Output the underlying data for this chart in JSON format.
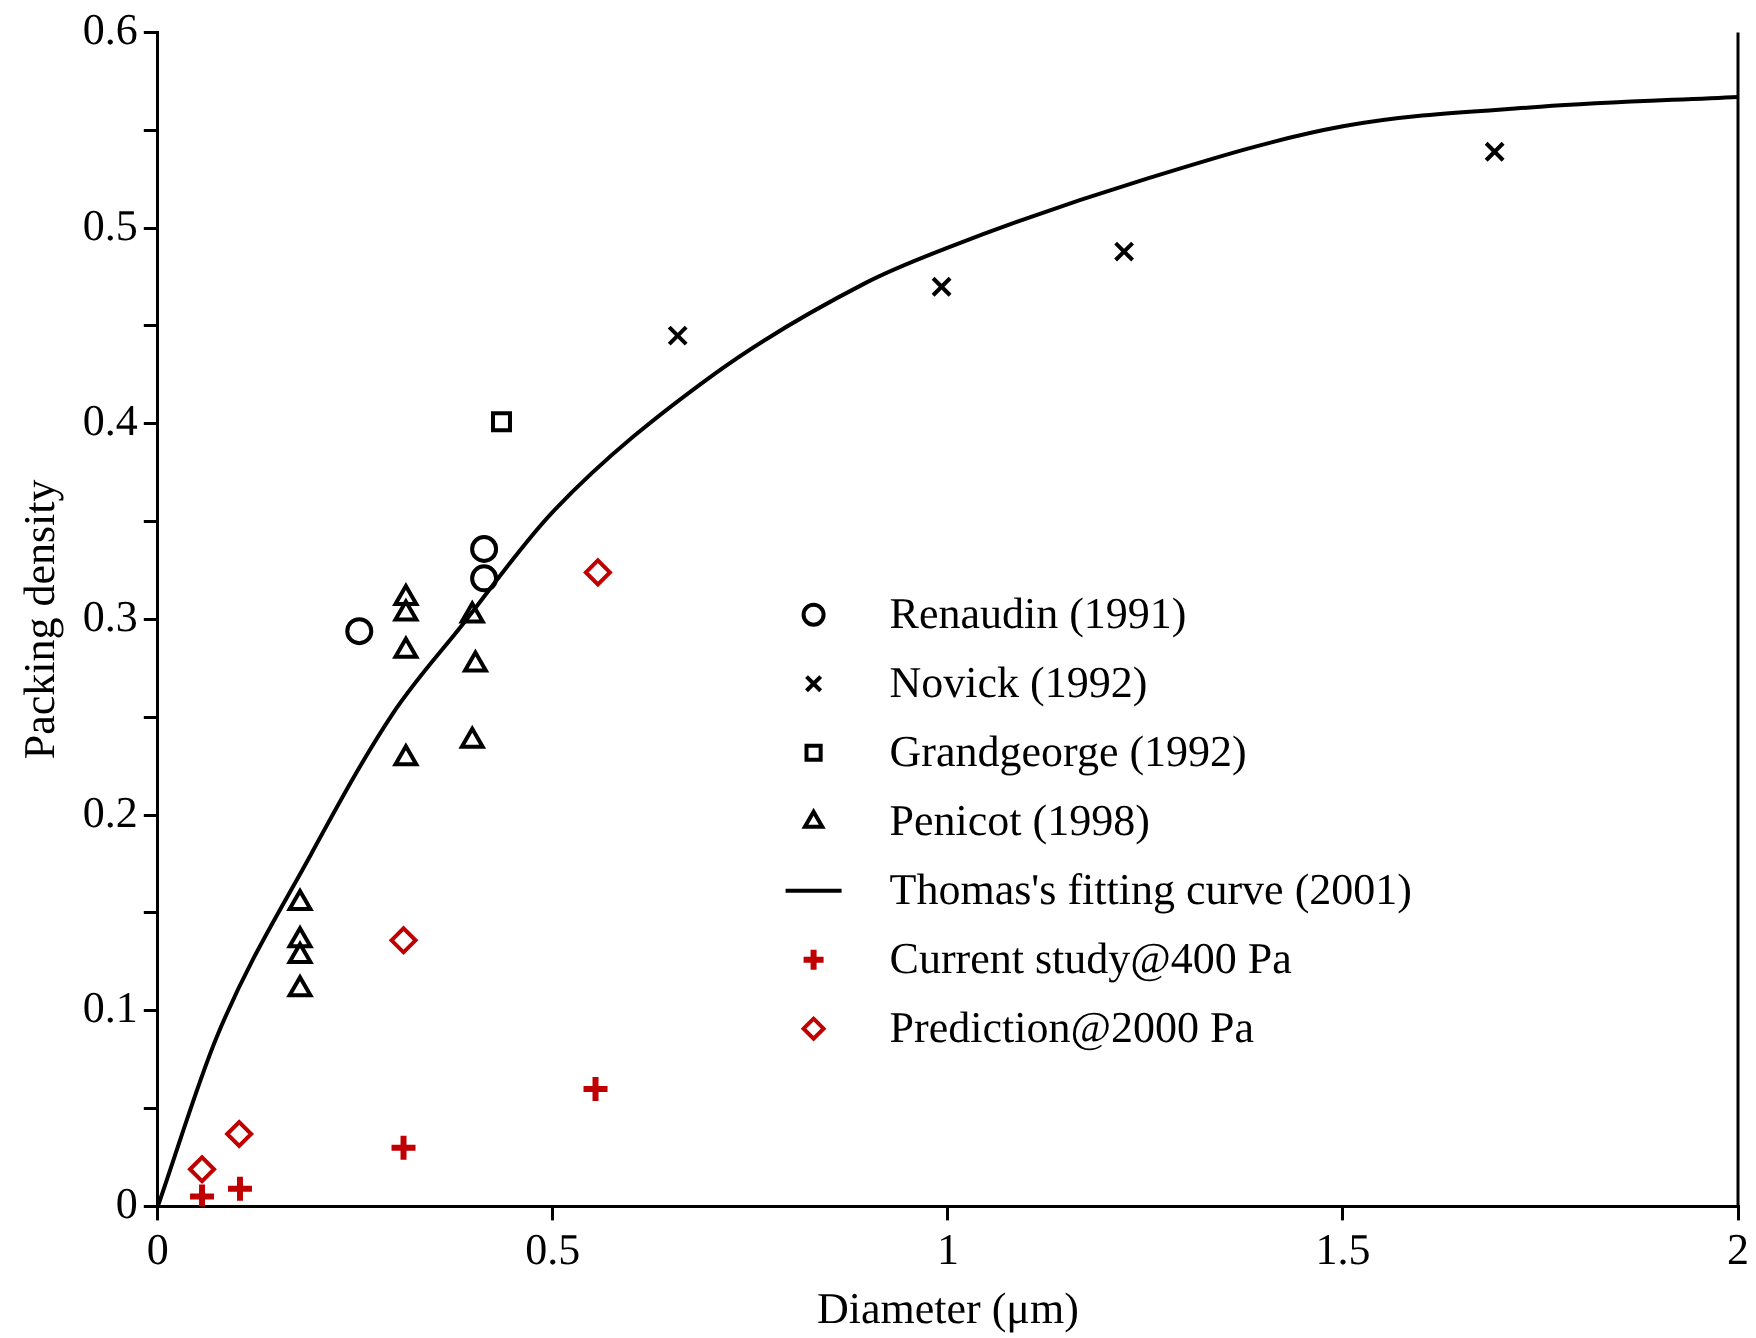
{
  "chart_data": {
    "type": "scatter",
    "xlabel": "Diameter (μm)",
    "ylabel": "Packing density",
    "xlim": [
      0,
      2
    ],
    "xticks": [
      0,
      0.5,
      1,
      1.5,
      2
    ],
    "ylim": [
      0,
      0.6
    ],
    "yticks": [
      0,
      {
        "value": 0.05,
        "label": null
      },
      0.1,
      {
        "value": 0.15,
        "label": null
      },
      0.2,
      {
        "value": 0.25,
        "label": null
      },
      0.3,
      {
        "value": 0.35,
        "label": null
      },
      0.4,
      {
        "value": 0.45,
        "label": null
      },
      0.5,
      {
        "value": 0.55,
        "label": null
      },
      0.6
    ],
    "grid": false,
    "legend": "right",
    "series": [
      {
        "name": "Renaudin (1991)",
        "marker": "circle",
        "color": "#000000",
        "x": [
          0.255,
          0.413,
          0.413
        ],
        "values": [
          0.294,
          0.336,
          0.321
        ]
      },
      {
        "name": "Novick (1992)",
        "marker": "x",
        "color": "#000000",
        "x": [
          0.658,
          0.992,
          1.223,
          1.692
        ],
        "values": [
          0.445,
          0.47,
          0.488,
          0.539
        ]
      },
      {
        "name": "Grandgeorge (1992)",
        "marker": "square",
        "color": "#000000",
        "x": [
          0.435
        ],
        "values": [
          0.401
        ]
      },
      {
        "name": "Penicot (1998)",
        "marker": "triangle",
        "color": "#000000",
        "x": [
          0.18,
          0.18,
          0.18,
          0.18,
          0.314,
          0.314,
          0.314,
          0.314,
          0.398,
          0.402,
          0.398
        ],
        "values": [
          0.155,
          0.136,
          0.128,
          0.111,
          0.311,
          0.303,
          0.284,
          0.229,
          0.302,
          0.277,
          0.238
        ]
      },
      {
        "name": "Thomas's fitting curve (2001)",
        "type": "line",
        "marker": "none",
        "line_style": "solid",
        "color": "#000000",
        "x": [
          0,
          0.075,
          0.194,
          0.296,
          0.385,
          0.5,
          0.703,
          0.896,
          1,
          1.25,
          1.5,
          1.75,
          2
        ],
        "values": [
          0,
          0.087,
          0.18,
          0.251,
          0.297,
          0.355,
          0.425,
          0.472,
          0.49,
          0.525,
          0.552,
          0.562,
          0.567
        ]
      },
      {
        "name": "Current study@400 Pa",
        "marker": "cross",
        "color": "#c00000",
        "x": [
          0.056,
          0.104,
          0.311,
          0.554
        ],
        "values": [
          0.005,
          0.009,
          0.03,
          0.06
        ]
      },
      {
        "name": "Prediction@2000 Pa",
        "marker": "diamond",
        "color": "#c00000",
        "x": [
          0.056,
          0.103,
          0.311,
          0.557
        ],
        "values": [
          0.019,
          0.037,
          0.136,
          0.324
        ]
      }
    ]
  }
}
